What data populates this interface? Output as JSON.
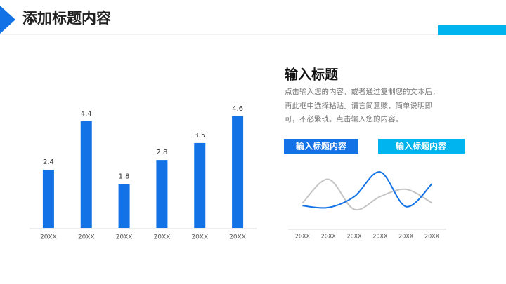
{
  "header": {
    "title": "添加标题内容"
  },
  "text": {
    "heading": "输入标题",
    "body": [
      "点击输入您的内容，或者通过复制您的文本后，",
      "再此框中选择粘贴。请言简意赅，简单说明即",
      "可，不必繁琐。点击输入您的内容。"
    ],
    "buttons": [
      "输入标题内容",
      "输入标题内容"
    ]
  },
  "chart_data": [
    {
      "type": "bar",
      "categories": [
        "20XX",
        "20XX",
        "20XX",
        "20XX",
        "20XX",
        "20XX"
      ],
      "values": [
        2.4,
        4.4,
        1.8,
        2.8,
        3.5,
        4.6
      ],
      "color": "#1372e6",
      "ylim": [
        0,
        5
      ]
    },
    {
      "type": "line",
      "categories": [
        "20XX",
        "20XX",
        "20XX",
        "20XX",
        "20XX",
        "20XX"
      ],
      "ylim": [
        0,
        5
      ],
      "series": [
        {
          "color": "#c4c4c4",
          "values": [
            1.2,
            3.8,
            0.5,
            1.9,
            2.7,
            1.2
          ]
        },
        {
          "color": "#1372e6",
          "values": [
            0.9,
            0.7,
            1.9,
            4.6,
            0.8,
            3.3
          ]
        }
      ]
    }
  ]
}
